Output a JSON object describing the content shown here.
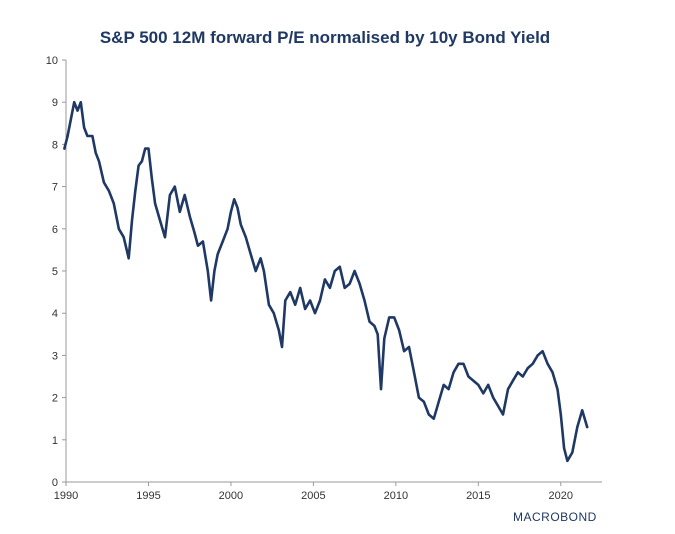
{
  "colors": {
    "line": "#1f3864",
    "axis": "#9a9a9a",
    "text": "#333333"
  },
  "logo": {
    "text": "MACROBOND"
  },
  "chart_data": {
    "type": "line",
    "title": "S&P 500 12M forward P/E normalised by 10y Bond Yield",
    "xlabel": "",
    "ylabel": "",
    "xlim": [
      1990,
      2022.5
    ],
    "ylim": [
      0,
      10
    ],
    "x_ticks": [
      1990,
      1995,
      2000,
      2005,
      2010,
      2015,
      2020
    ],
    "y_ticks": [
      0,
      1,
      2,
      3,
      4,
      5,
      6,
      7,
      8,
      9,
      10
    ],
    "grid": false,
    "legend": "none",
    "series": [
      {
        "x": [
          1989.9,
          1990.1,
          1990.3,
          1990.5,
          1990.7,
          1990.9,
          1991.1,
          1991.3,
          1991.6,
          1991.8,
          1992.0,
          1992.3,
          1992.6,
          1992.9,
          1993.2,
          1993.5,
          1993.8,
          1994.0,
          1994.2,
          1994.4,
          1994.6,
          1994.8,
          1995.0,
          1995.2,
          1995.4,
          1995.7,
          1996.0,
          1996.3,
          1996.6,
          1996.9,
          1997.2,
          1997.5,
          1997.8,
          1998.0,
          1998.3,
          1998.6,
          1998.8,
          1999.0,
          1999.2,
          1999.5,
          1999.8,
          2000.0,
          2000.2,
          2000.4,
          2000.6,
          2000.9,
          2001.2,
          2001.5,
          2001.8,
          2002.0,
          2002.3,
          2002.6,
          2002.9,
          2003.1,
          2003.3,
          2003.6,
          2003.9,
          2004.2,
          2004.5,
          2004.8,
          2005.1,
          2005.4,
          2005.7,
          2006.0,
          2006.3,
          2006.6,
          2006.9,
          2007.2,
          2007.5,
          2007.8,
          2008.1,
          2008.4,
          2008.7,
          2008.9,
          2009.1,
          2009.3,
          2009.6,
          2009.9,
          2010.2,
          2010.5,
          2010.8,
          2011.1,
          2011.4,
          2011.7,
          2012.0,
          2012.3,
          2012.6,
          2012.9,
          2013.2,
          2013.5,
          2013.8,
          2014.1,
          2014.4,
          2014.7,
          2015.0,
          2015.3,
          2015.6,
          2015.9,
          2016.2,
          2016.5,
          2016.8,
          2017.1,
          2017.4,
          2017.7,
          2018.0,
          2018.3,
          2018.6,
          2018.9,
          2019.2,
          2019.5,
          2019.8,
          2020.0,
          2020.2,
          2020.4,
          2020.7,
          2021.0,
          2021.3,
          2021.6
        ],
        "values": [
          7.9,
          8.2,
          8.6,
          9.0,
          8.8,
          9.0,
          8.4,
          8.2,
          8.2,
          7.8,
          7.6,
          7.1,
          6.9,
          6.6,
          6.0,
          5.8,
          5.3,
          6.2,
          6.9,
          7.5,
          7.6,
          7.9,
          7.9,
          7.2,
          6.6,
          6.2,
          5.8,
          6.8,
          7.0,
          6.4,
          6.8,
          6.3,
          5.9,
          5.6,
          5.7,
          5.0,
          4.3,
          5.0,
          5.4,
          5.7,
          6.0,
          6.4,
          6.7,
          6.5,
          6.1,
          5.8,
          5.4,
          5.0,
          5.3,
          5.0,
          4.2,
          4.0,
          3.6,
          3.2,
          4.3,
          4.5,
          4.2,
          4.6,
          4.1,
          4.3,
          4.0,
          4.3,
          4.8,
          4.6,
          5.0,
          5.1,
          4.6,
          4.7,
          5.0,
          4.7,
          4.3,
          3.8,
          3.7,
          3.5,
          2.2,
          3.4,
          3.9,
          3.9,
          3.6,
          3.1,
          3.2,
          2.6,
          2.0,
          1.9,
          1.6,
          1.5,
          1.9,
          2.3,
          2.2,
          2.6,
          2.8,
          2.8,
          2.5,
          2.4,
          2.3,
          2.1,
          2.3,
          2.0,
          1.8,
          1.6,
          2.2,
          2.4,
          2.6,
          2.5,
          2.7,
          2.8,
          3.0,
          3.1,
          2.8,
          2.6,
          2.2,
          1.6,
          0.8,
          0.5,
          0.7,
          1.3,
          1.7,
          1.3
        ]
      }
    ]
  }
}
